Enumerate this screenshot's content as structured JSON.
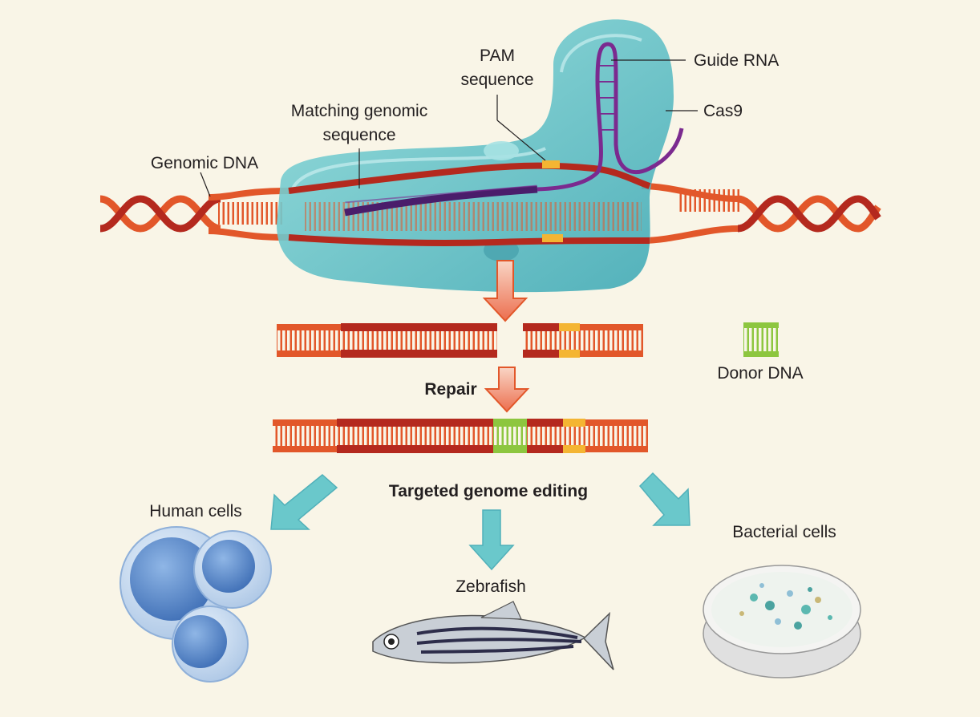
{
  "labels": {
    "pam_line1": "PAM",
    "pam_line2": "sequence",
    "guide_rna": "Guide RNA",
    "matching_line1": "Matching genomic",
    "matching_line2": "sequence",
    "cas9": "Cas9",
    "genomic_dna": "Genomic DNA",
    "donor_dna": "Donor DNA",
    "repair": "Repair",
    "targeted_genome_editing": "Targeted genome editing",
    "human_cells": "Human cells",
    "zebrafish": "Zebrafish",
    "bacterial_cells": "Bacterial cells"
  },
  "colors": {
    "background": "#f9f5e7",
    "dna_strand": "#e2572a",
    "dna_dark": "#b4291e",
    "pam": "#f4b533",
    "donor": "#8dc63f",
    "guide_rna": "#7b2a8f",
    "cas9": "#5bc4c9",
    "arrow_down": "#ec6f4f",
    "arrow_outcome": "#5bc4c9"
  }
}
